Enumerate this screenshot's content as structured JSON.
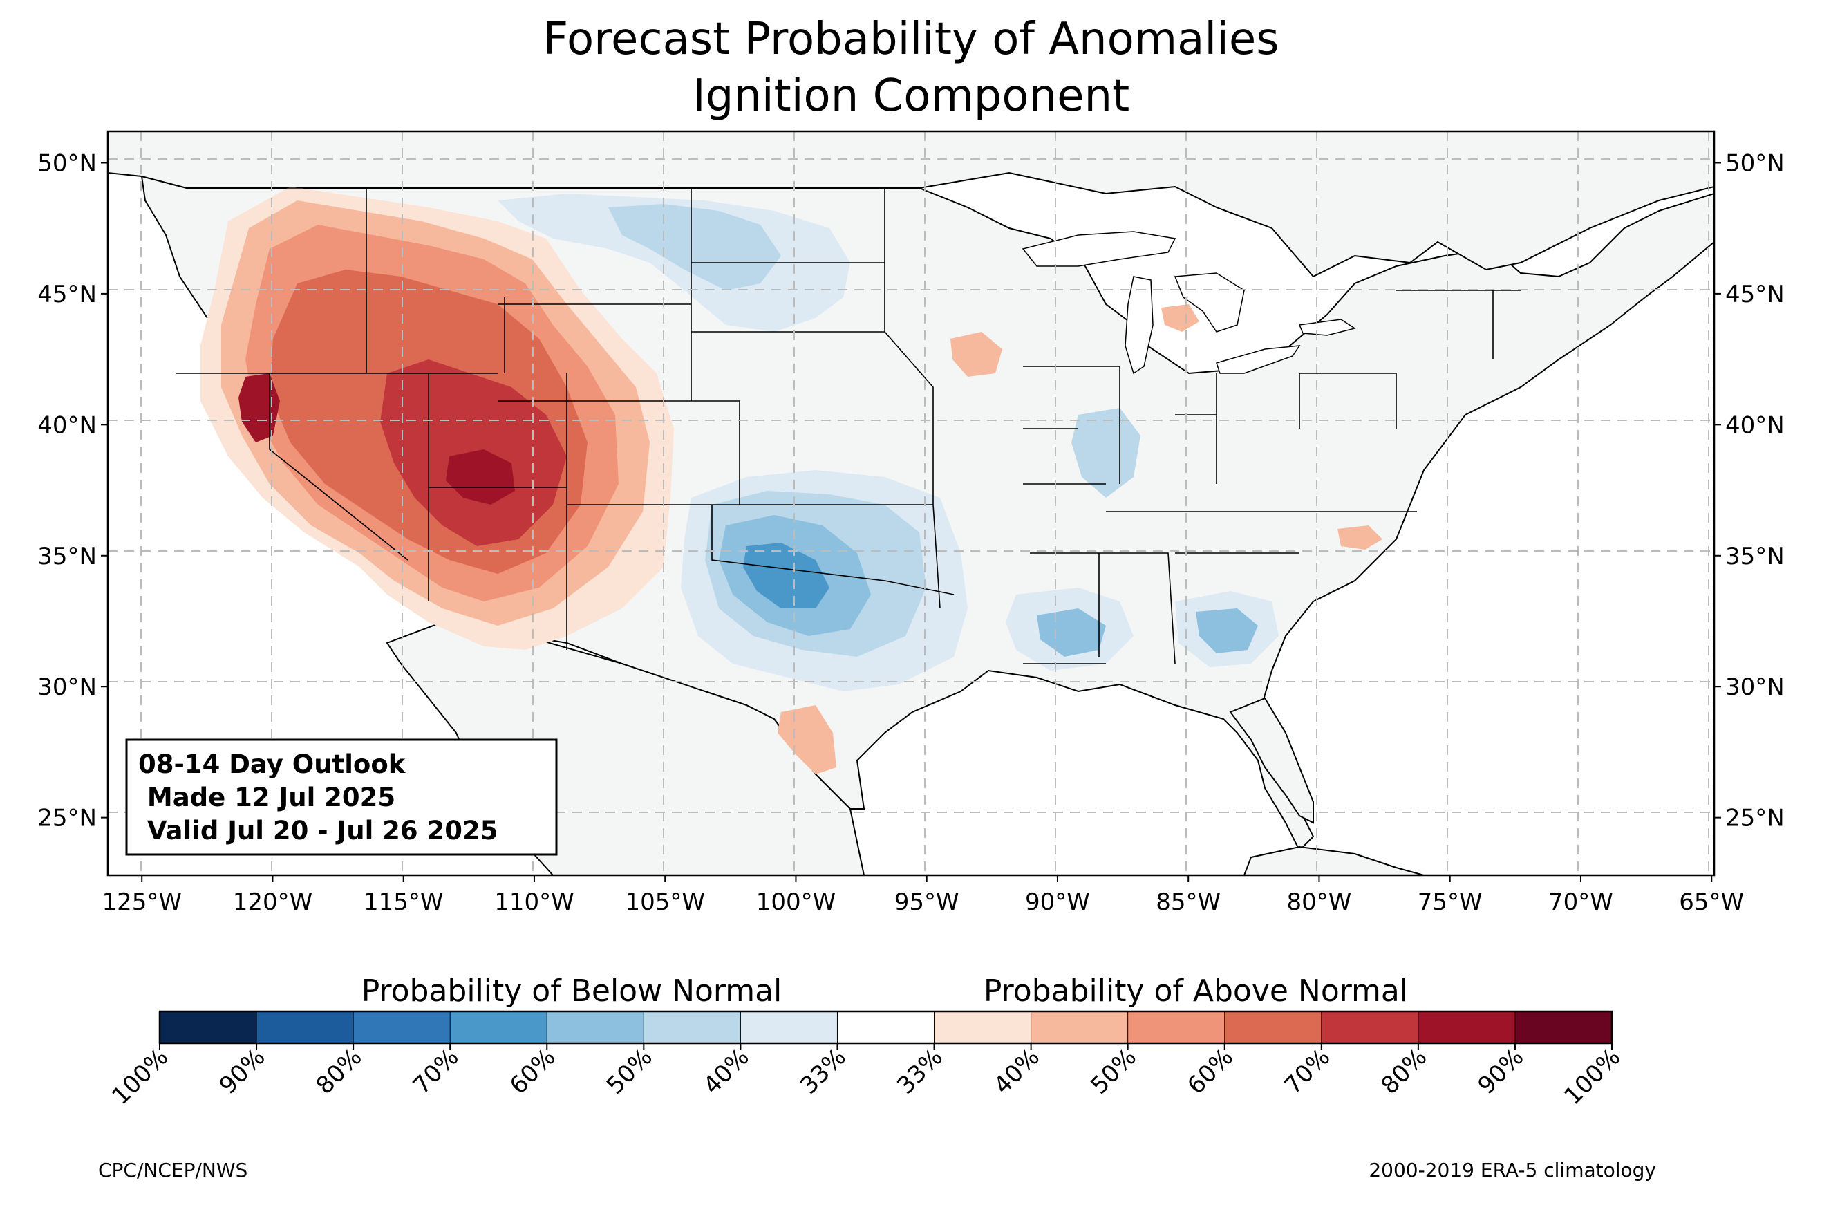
{
  "title": {
    "line1": "Forecast Probability of Anomalies",
    "line2": "Ignition Component"
  },
  "outlook_box": {
    "line1": "08-14 Day Outlook",
    "line2": " Made 12 Jul 2025",
    "line3": " Valid Jul 20 - Jul 26 2025"
  },
  "map": {
    "lon_range": [
      -126.3,
      -64.9
    ],
    "lat_range": [
      22.8,
      51.2
    ],
    "lat_ticks": [
      {
        "value": 50,
        "label": "50°N"
      },
      {
        "value": 45,
        "label": "45°N"
      },
      {
        "value": 40,
        "label": "40°N"
      },
      {
        "value": 35,
        "label": "35°N"
      },
      {
        "value": 30,
        "label": "30°N"
      },
      {
        "value": 25,
        "label": "25°N"
      }
    ],
    "lon_ticks": [
      {
        "value": -125,
        "label": "125°W"
      },
      {
        "value": -120,
        "label": "120°W"
      },
      {
        "value": -115,
        "label": "115°W"
      },
      {
        "value": -110,
        "label": "110°W"
      },
      {
        "value": -105,
        "label": "105°W"
      },
      {
        "value": -100,
        "label": "100°W"
      },
      {
        "value": -95,
        "label": "95°W"
      },
      {
        "value": -90,
        "label": "90°W"
      },
      {
        "value": -85,
        "label": "85°W"
      },
      {
        "value": -80,
        "label": "80°W"
      },
      {
        "value": -75,
        "label": "75°W"
      },
      {
        "value": -70,
        "label": "70°W"
      },
      {
        "value": -65,
        "label": "65°W"
      }
    ],
    "land_color": "#f4f6f6",
    "gridline_style": "dashed"
  },
  "colorbar": {
    "below_label": "Probability of Below Normal",
    "above_label": "Probability of Above Normal",
    "tick_labels": [
      "100%",
      "90%",
      "80%",
      "70%",
      "60%",
      "50%",
      "40%",
      "33%",
      "33%",
      "40%",
      "50%",
      "60%",
      "70%",
      "80%",
      "90%",
      "100%"
    ],
    "colors": [
      "#08264f",
      "#1d5c9c",
      "#2f77b6",
      "#4a98c9",
      "#8cc0de",
      "#bad8ea",
      "#dde9f3",
      "#ffffff",
      "#fbe3d6",
      "#f6b99d",
      "#ef9479",
      "#dc6a53",
      "#c0363a",
      "#9e1327",
      "#690520"
    ]
  },
  "footer": {
    "left": "CPC/NCEP/NWS",
    "right": "2000-2019 ERA-5 climatology"
  }
}
